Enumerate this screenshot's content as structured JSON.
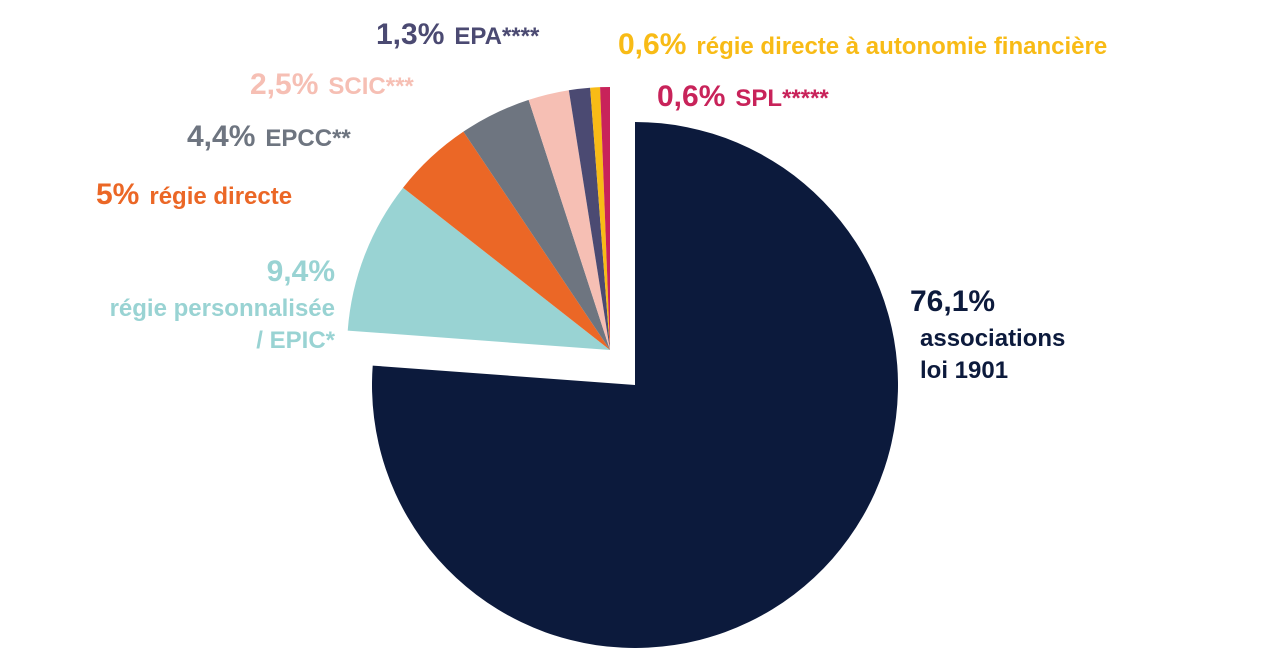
{
  "chart_data": {
    "type": "pie",
    "categories": [
      "associations\nloi 1901",
      "régie personnalisée\n/ EPIC*",
      "régie directe",
      "EPCC**",
      "SCIC***",
      "EPA****",
      "régie directe à autonomie financière",
      "SPL*****"
    ],
    "values": [
      76.1,
      9.4,
      5,
      4.4,
      2.5,
      1.3,
      0.6,
      0.6
    ],
    "value_labels": [
      "76,1%",
      "9,4%",
      "5%",
      "4,4%",
      "2,5%",
      "1,3%",
      "0,6%",
      "0,6%"
    ],
    "colors": [
      "#0c1a3c",
      "#99d3d3",
      "#eb6726",
      "#6e7580",
      "#f6bfb4",
      "#4b4a72",
      "#f8bb16",
      "#c8235a"
    ]
  }
}
